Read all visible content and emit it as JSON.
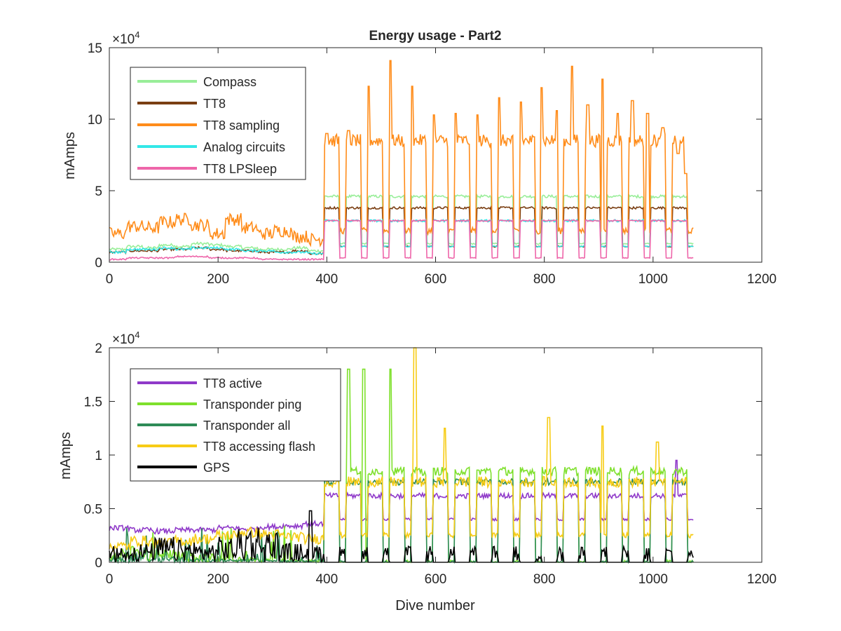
{
  "figure": {
    "background": "#ffffff",
    "axis_color": "#262626"
  },
  "chart_data": [
    {
      "type": "line",
      "title": "Energy usage - Part2",
      "xlabel": "",
      "ylabel": "mAmps",
      "xlim": [
        0,
        1200
      ],
      "ylim": [
        0,
        15
      ],
      "y_multiplier": "×10",
      "y_multiplier_exp": "4",
      "x_ticks": [
        "0",
        "200",
        "400",
        "600",
        "800",
        "1000",
        "1200"
      ],
      "y_ticks": [
        "0",
        "5",
        "10",
        "15"
      ],
      "grid": false,
      "legend_position": "top-left",
      "series": [
        {
          "name": "Compass",
          "color": "#99ee99",
          "low": [
            0.9,
            1.1,
            1.0,
            1.2,
            1.1,
            1.3,
            1.2,
            1.1,
            1.0,
            0.9,
            0.9,
            1.0,
            0.8
          ],
          "hi": 4.6,
          "dip": 1.3,
          "noise": 0.1
        },
        {
          "name": "TT8",
          "color": "#7a3e12",
          "low": [
            0.7,
            0.8,
            0.8,
            0.9,
            0.9,
            1.0,
            0.9,
            0.8,
            0.8,
            0.7,
            0.7,
            0.8,
            0.6
          ],
          "hi": 3.8,
          "dip": 1.1,
          "noise": 0.08
        },
        {
          "name": "TT8 sampling",
          "color": "#ff8c1a",
          "low": [
            2.0,
            2.5,
            2.4,
            2.8,
            3.0,
            2.6,
            2.0,
            3.0,
            2.4,
            2.0,
            2.2,
            1.8,
            1.6
          ],
          "hi": 8.5,
          "dip": 2.2,
          "noise": 0.45
        },
        {
          "name": "Analog circuits",
          "color": "#33e8e8",
          "low": [
            0.7,
            0.9,
            0.9,
            1.0,
            0.9,
            1.0,
            1.0,
            0.9,
            0.8,
            0.8,
            0.7,
            0.7,
            0.6
          ],
          "hi": 2.9,
          "dip": 1.1,
          "noise": 0.08
        },
        {
          "name": "TT8 LPSleep",
          "color": "#ee66aa",
          "low": [
            0.2,
            0.3,
            0.3,
            0.3,
            0.4,
            0.4,
            0.3,
            0.3,
            0.3,
            0.2,
            0.2,
            0.2,
            0.2
          ],
          "hi": 2.9,
          "dip": 0.3,
          "noise": 0.05
        }
      ],
      "peaks": [
        {
          "x": 400,
          "y": 9.0
        },
        {
          "x": 440,
          "y": 9.2
        },
        {
          "x": 477,
          "y": 12.3
        },
        {
          "x": 517,
          "y": 14.1
        },
        {
          "x": 557,
          "y": 12.3
        },
        {
          "x": 597,
          "y": 10.3
        },
        {
          "x": 637,
          "y": 10.4
        },
        {
          "x": 677,
          "y": 10.3
        },
        {
          "x": 717,
          "y": 11.5
        },
        {
          "x": 757,
          "y": 11.2
        },
        {
          "x": 795,
          "y": 12.2
        },
        {
          "x": 823,
          "y": 10.6
        },
        {
          "x": 851,
          "y": 13.7
        },
        {
          "x": 880,
          "y": 11.0
        },
        {
          "x": 907,
          "y": 12.8
        },
        {
          "x": 935,
          "y": 10.4
        },
        {
          "x": 962,
          "y": 11.3
        },
        {
          "x": 990,
          "y": 10.4
        },
        {
          "x": 1018,
          "y": 9.4
        },
        {
          "x": 1046,
          "y": 7.6
        },
        {
          "x": 1060,
          "y": 6.2
        }
      ],
      "active_range": [
        0,
        1075
      ]
    },
    {
      "type": "line",
      "title": "",
      "xlabel": "Dive number",
      "ylabel": "mAmps",
      "xlim": [
        0,
        1200
      ],
      "ylim": [
        0,
        2
      ],
      "y_multiplier": "×10",
      "y_multiplier_exp": "4",
      "x_ticks": [
        "0",
        "200",
        "400",
        "600",
        "800",
        "1000",
        "1200"
      ],
      "y_ticks": [
        "0",
        "0.5",
        "1",
        "1.5",
        "2"
      ],
      "grid": false,
      "legend_position": "top-left",
      "series": [
        {
          "name": "TT8 active",
          "color": "#8f39c9",
          "low": [
            0.32,
            0.3,
            0.29,
            0.3,
            0.3,
            0.32,
            0.31,
            0.33,
            0.34,
            0.36
          ],
          "hi": 0.62,
          "dip": 0.4,
          "noise": 0.025
        },
        {
          "name": "Transponder ping",
          "color": "#7ee02c",
          "low": [
            0.1,
            0.15,
            0.12,
            0.1,
            0.08,
            0.06,
            0.05,
            0.04,
            0.03,
            0.03
          ],
          "hi": 0.85,
          "dip": 0.0,
          "noise": 0.04
        },
        {
          "name": "Transponder all",
          "color": "#2e8b57",
          "low": [
            0.05,
            0.08,
            0.06,
            0.05,
            0.04,
            0.03,
            0.03,
            0.02,
            0.02,
            0.02
          ],
          "hi": 0.75,
          "dip": 0.0,
          "noise": 0.03
        },
        {
          "name": "TT8 accessing flash",
          "color": "#f7cc16",
          "low": [
            0.15,
            0.2,
            0.18,
            0.2,
            0.22,
            0.25,
            0.28,
            0.26,
            0.24,
            0.22
          ],
          "hi": 0.75,
          "dip": 0.25,
          "noise": 0.05
        },
        {
          "name": "GPS",
          "color": "#000000",
          "low": [
            0.05,
            0.06,
            0.08,
            0.07,
            0.06,
            0.08,
            0.12,
            0.1,
            0.06,
            0.05
          ],
          "hi": 0.12,
          "dip": 0.0,
          "noise": 0.05
        }
      ],
      "peaks": [
        {
          "x": 440,
          "y": 1.8,
          "series": "Transponder ping"
        },
        {
          "x": 468,
          "y": 1.8,
          "series": "Transponder ping"
        },
        {
          "x": 517,
          "y": 1.8,
          "series": "Transponder ping"
        },
        {
          "x": 562,
          "y": 2.0,
          "series": "TT8 accessing flash"
        },
        {
          "x": 617,
          "y": 1.25,
          "series": "TT8 accessing flash"
        },
        {
          "x": 808,
          "y": 1.35,
          "series": "TT8 accessing flash"
        },
        {
          "x": 907,
          "y": 1.27,
          "series": "TT8 accessing flash"
        },
        {
          "x": 1008,
          "y": 1.12,
          "series": "TT8 accessing flash"
        },
        {
          "x": 1043,
          "y": 0.95,
          "series": "TT8 active"
        },
        {
          "x": 370,
          "y": 0.48,
          "series": "GPS"
        }
      ],
      "active_range": [
        0,
        1075
      ]
    }
  ]
}
